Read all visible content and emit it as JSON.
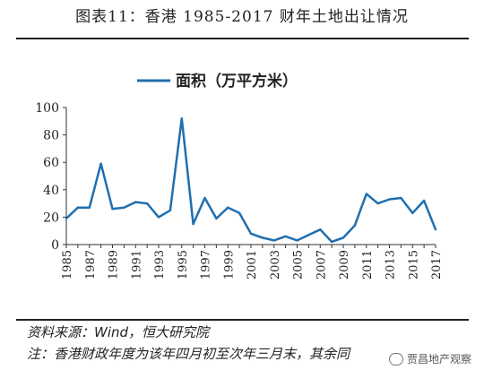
{
  "page": {
    "title": "图表11：香港 1985-2017 财年土地出让情况",
    "source": "资料来源：Wind，恒大研究院",
    "note": "注：香港财政年度为该年四月初至次年三月末，其余同",
    "watermark": "贾昌地产观察",
    "line_color": "#1f6fb0"
  },
  "chart_data": {
    "type": "line",
    "title": "",
    "xlabel": "",
    "ylabel": "",
    "x": [
      1985,
      1986,
      1987,
      1988,
      1989,
      1990,
      1991,
      1992,
      1993,
      1994,
      1995,
      1996,
      1997,
      1998,
      1999,
      2000,
      2001,
      2002,
      2003,
      2004,
      2005,
      2006,
      2007,
      2008,
      2009,
      2010,
      2011,
      2012,
      2013,
      2014,
      2015,
      2016,
      2017
    ],
    "x_tick_labels": [
      "1985",
      "1987",
      "1989",
      "1991",
      "1993",
      "1995",
      "1997",
      "1999",
      "2001",
      "2003",
      "2005",
      "2007",
      "2009",
      "2011",
      "2013",
      "2015",
      "2017"
    ],
    "ylim": [
      0,
      100
    ],
    "y_ticks": [
      0,
      20,
      40,
      60,
      80,
      100
    ],
    "grid": false,
    "legend_position": "top-center",
    "series": [
      {
        "name": "面积（万平方米）",
        "color": "#1f6fb0",
        "values": [
          19,
          27,
          27,
          59,
          26,
          27,
          31,
          30,
          20,
          25,
          92,
          15,
          34,
          19,
          27,
          23,
          8,
          5,
          3,
          6,
          3,
          7,
          11,
          2,
          5,
          14,
          37,
          30,
          33,
          34,
          23,
          32,
          11
        ]
      }
    ]
  }
}
